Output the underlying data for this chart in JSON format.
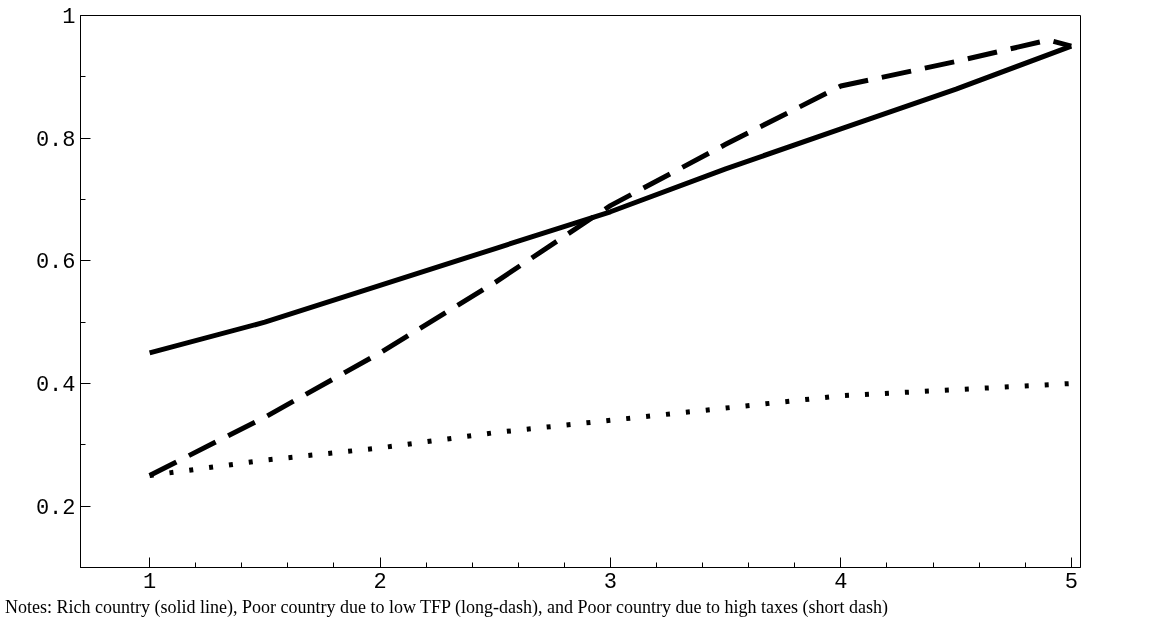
{
  "chart_data": {
    "type": "line",
    "xlim": [
      0.7,
      5.04
    ],
    "ylim": [
      0.1,
      1.0
    ],
    "xticks": [
      1,
      {
        "value": 1.2,
        "label": null
      },
      {
        "value": 1.4,
        "label": null
      },
      {
        "value": 1.6,
        "label": null
      },
      {
        "value": 1.8,
        "label": null
      },
      2,
      {
        "value": 2.2,
        "label": null
      },
      {
        "value": 2.4,
        "label": null
      },
      {
        "value": 2.6,
        "label": null
      },
      {
        "value": 2.8,
        "label": null
      },
      3,
      {
        "value": 3.2,
        "label": null
      },
      {
        "value": 3.4,
        "label": null
      },
      {
        "value": 3.6,
        "label": null
      },
      {
        "value": 3.8,
        "label": null
      },
      4,
      {
        "value": 4.2,
        "label": null
      },
      {
        "value": 4.4,
        "label": null
      },
      {
        "value": 4.6,
        "label": null
      },
      {
        "value": 4.8,
        "label": null
      },
      5
    ],
    "yticks": [
      {
        "value": 0.1,
        "label": null
      },
      0.2,
      {
        "value": 0.3,
        "label": null
      },
      0.4,
      {
        "value": 0.5,
        "label": null
      },
      0.6,
      {
        "value": 0.7,
        "label": null
      },
      0.8,
      {
        "value": 0.9,
        "label": null
      },
      1
    ],
    "grid": false,
    "series": [
      {
        "color": "#000000",
        "line_style": "solid",
        "x": [
          1,
          1.5,
          2,
          2.5,
          3,
          3.5,
          4,
          4.5,
          5
        ],
        "values": [
          0.45,
          0.5,
          0.56,
          0.62,
          0.68,
          0.75,
          0.815,
          0.88,
          0.95
        ]
      },
      {
        "color": "#000000",
        "line_style": "dashed",
        "x": [
          1,
          1.5,
          2,
          2.5,
          3,
          3.5,
          4,
          4.5,
          4.9,
          5
        ],
        "values": [
          0.25,
          0.345,
          0.45,
          0.565,
          0.69,
          0.79,
          0.885,
          0.925,
          0.96,
          0.95
        ]
      },
      {
        "color": "#000000",
        "line_style": "dotted",
        "x": [
          1,
          1.5,
          2,
          2.5,
          3,
          3.5,
          4,
          4.5,
          5
        ],
        "values": [
          0.25,
          0.275,
          0.295,
          0.32,
          0.34,
          0.36,
          0.38,
          0.39,
          0.4
        ]
      }
    ],
    "annotations": [
      "Notes: Rich country (solid line), Poor country due to low TFP (long-dash), and Poor country due to high taxes (short dash)"
    ]
  }
}
